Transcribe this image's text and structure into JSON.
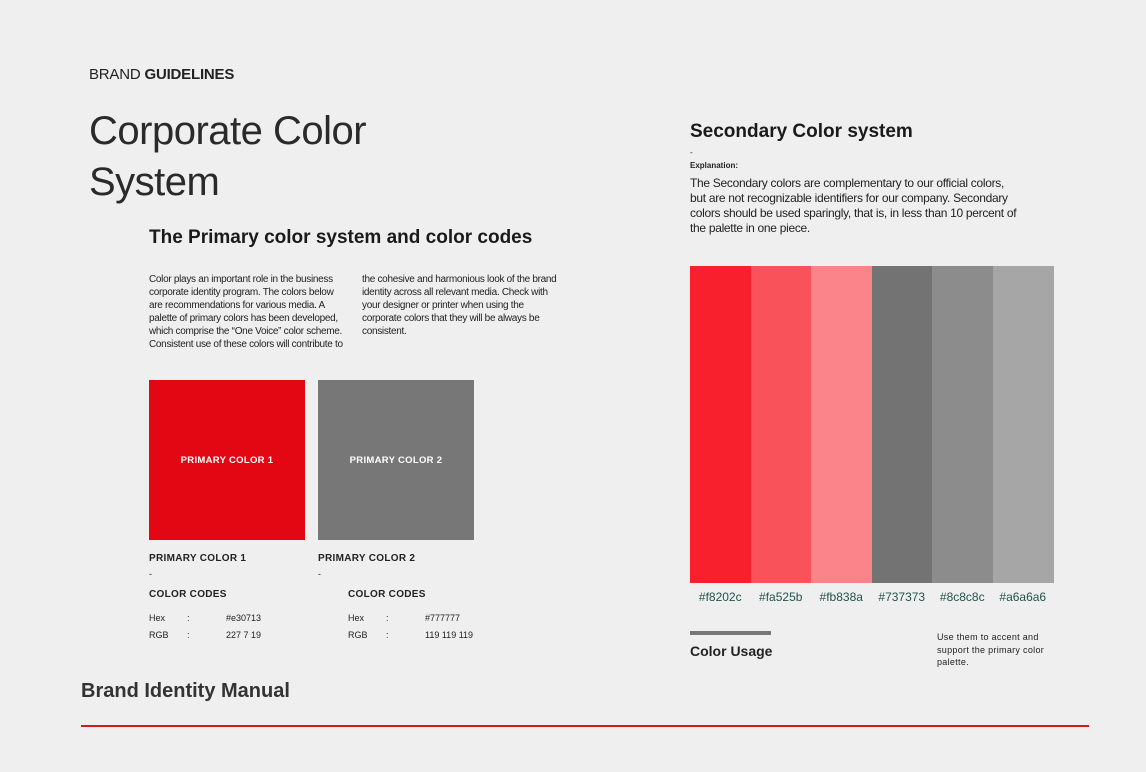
{
  "header": {
    "prefix": "BRAND",
    "bold": "GUIDELINES"
  },
  "title": "Corporate Color System",
  "primary": {
    "heading": "The Primary color system and color codes",
    "body": "Color plays an important role in the business corporate identity program. The colors below are recommendations for various media. A palette of primary colors has been developed, which comprise the “One Voice” color scheme. Consistent use of these colors will contribute to the cohesive and harmonious look of the brand identity across all relevant media. Check with your designer or printer when using the corporate colors that they will be always be consistent.",
    "swatches": [
      {
        "label": "PRIMARY COLOR 1",
        "name": "PRIMARY COLOR 1",
        "dash": "-",
        "codes_title": "COLOR CODES",
        "hex_key": "Hex",
        "sep": ":",
        "hex": "#e30713",
        "rgb_key": "RGB",
        "rgb": "227 7 19"
      },
      {
        "label": "PRIMARY COLOR 2",
        "name": "PRIMARY COLOR 2",
        "dash": "-",
        "codes_title": "COLOR CODES",
        "hex_key": "Hex",
        "sep": ":",
        "hex": "#777777",
        "rgb_key": "RGB",
        "rgb": "119 119 119"
      }
    ]
  },
  "secondary": {
    "heading": "Secondary Color system",
    "dash": "-",
    "explanation_label": "Explanation:",
    "body": "The Secondary colors are complementary to our official colors, but are not recognizable identifiers for our company. Secondary colors should be used sparingly, that is, in less than 10 percent of the palette in one piece.",
    "swatches": [
      "#f8202c",
      "#fa525b",
      "#fb838a",
      "#737373",
      "#8c8c8c",
      "#a6a6a6"
    ],
    "usage_title": "Color Usage",
    "usage_note": "Use them to accent and support the primary color palette."
  },
  "footer": "Brand Identity Manual"
}
